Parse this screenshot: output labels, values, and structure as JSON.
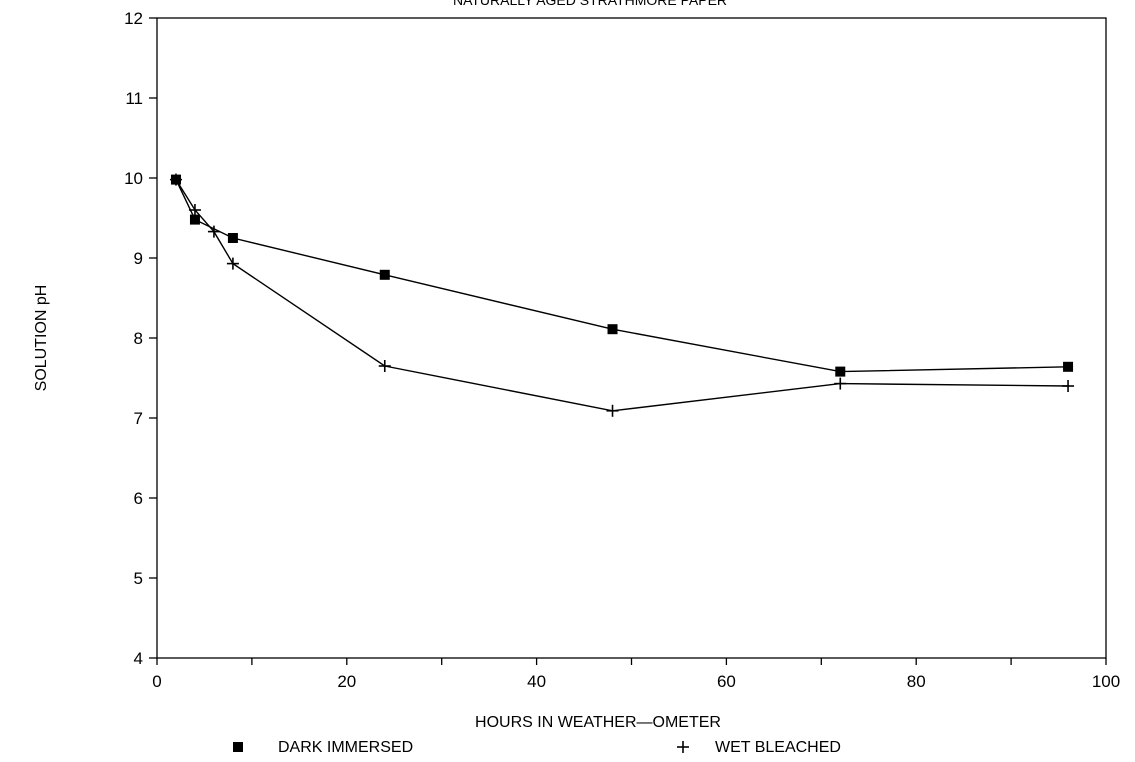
{
  "chart_data": {
    "type": "line",
    "title": "NATURALLY AGED STRATHMORE PAPER",
    "xlabel": "HOURS IN WEATHER—OMETER",
    "ylabel": "SOLUTION pH",
    "xlim": [
      0,
      100
    ],
    "ylim": [
      4,
      12
    ],
    "xticks": [
      0,
      20,
      40,
      60,
      80,
      100
    ],
    "yticks": [
      4,
      5,
      6,
      7,
      8,
      9,
      10,
      11,
      12
    ],
    "grid": false,
    "legend_position": "bottom",
    "series": [
      {
        "name": "DARK IMMERSED",
        "marker": "square",
        "x": [
          2,
          4,
          8,
          24,
          48,
          72,
          96
        ],
        "y": [
          9.98,
          9.48,
          9.25,
          8.79,
          8.11,
          7.58,
          7.64
        ]
      },
      {
        "name": "WET BLEACHED",
        "marker": "plus",
        "x": [
          2,
          4,
          6,
          8,
          24,
          48,
          72,
          96
        ],
        "y": [
          9.98,
          9.6,
          9.33,
          8.93,
          7.65,
          7.09,
          7.43,
          7.4
        ]
      }
    ]
  }
}
